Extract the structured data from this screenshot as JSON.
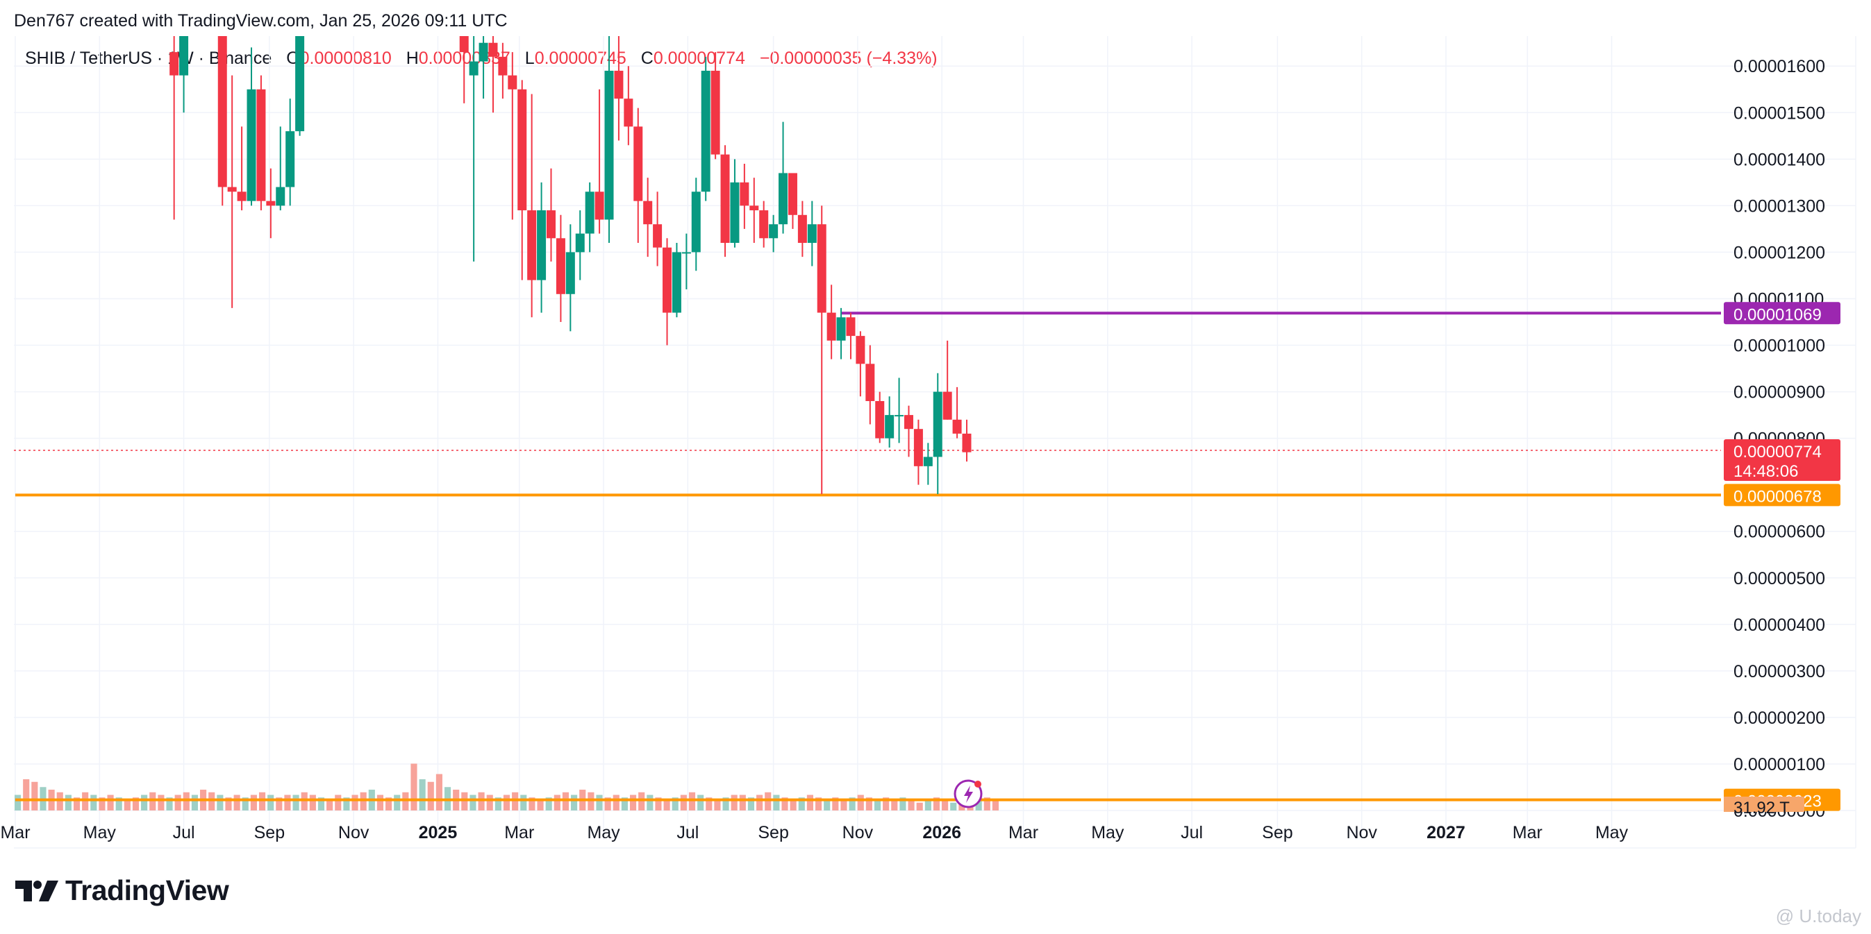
{
  "header": {
    "credit": "Den767 created with TradingView.com, Jan 25, 2026 09:11 UTC"
  },
  "legend": {
    "symbol": "SHIB / TetherUS · 1W · Binance",
    "open_label": "O",
    "open_value": "0.00000810",
    "high_label": "H",
    "high_value": "0.00000837",
    "low_label": "L",
    "low_value": "0.00000745",
    "close_label": "C",
    "close_value": "0.00000774",
    "change": "−0.00000035 (−4.33%)"
  },
  "brand": {
    "logo_text": "TradingView",
    "watermark": "@ U.today"
  },
  "colors": {
    "up": "#089981",
    "down": "#f23645",
    "volume_up": "#9fd0c6",
    "volume_down": "#f7a39a",
    "resistance": "#9c27b0",
    "support": "#ff9800",
    "grid": "#f0f3fa"
  },
  "chart_data": {
    "type": "candlestick",
    "symbol": "SHIB / TetherUS",
    "interval": "1W",
    "exchange": "Binance",
    "ylim": [
      0.0,
      1.66e-05
    ],
    "y_tick_labels": [
      "0.00001600",
      "0.00001500",
      "0.00001400",
      "0.00001300",
      "0.00001200",
      "0.00001100",
      "0.00001000",
      "0.00000900",
      "0.00000800",
      "0.00000600",
      "0.00000500",
      "0.00000400",
      "0.00000300",
      "0.00000200",
      "0.00000100",
      "0.00000000"
    ],
    "y_ticks": [
      1.6e-05,
      1.5e-05,
      1.4e-05,
      1.3e-05,
      1.2e-05,
      1.1e-05,
      1e-05,
      9e-06,
      8e-06,
      6e-06,
      5e-06,
      4e-06,
      3e-06,
      2e-06,
      1e-06,
      0.0
    ],
    "x_range": [
      "2024-03-01",
      "2027-06-20"
    ],
    "x_ticks": [
      {
        "date": "2024-03-01",
        "label": "Mar",
        "bold": false
      },
      {
        "date": "2024-05-01",
        "label": "May",
        "bold": false
      },
      {
        "date": "2024-07-01",
        "label": "Jul",
        "bold": false
      },
      {
        "date": "2024-09-01",
        "label": "Sep",
        "bold": false
      },
      {
        "date": "2024-11-01",
        "label": "Nov",
        "bold": false
      },
      {
        "date": "2025-01-01",
        "label": "2025",
        "bold": true
      },
      {
        "date": "2025-03-01",
        "label": "Mar",
        "bold": false
      },
      {
        "date": "2025-05-01",
        "label": "May",
        "bold": false
      },
      {
        "date": "2025-07-01",
        "label": "Jul",
        "bold": false
      },
      {
        "date": "2025-09-01",
        "label": "Sep",
        "bold": false
      },
      {
        "date": "2025-11-01",
        "label": "Nov",
        "bold": false
      },
      {
        "date": "2026-01-01",
        "label": "2026",
        "bold": true
      },
      {
        "date": "2026-03-01",
        "label": "Mar",
        "bold": false
      },
      {
        "date": "2026-05-01",
        "label": "May",
        "bold": false
      },
      {
        "date": "2026-07-01",
        "label": "Jul",
        "bold": false
      },
      {
        "date": "2026-09-01",
        "label": "Sep",
        "bold": false
      },
      {
        "date": "2026-11-01",
        "label": "Nov",
        "bold": false
      },
      {
        "date": "2027-01-01",
        "label": "2027",
        "bold": true
      },
      {
        "date": "2027-03-01",
        "label": "Mar",
        "bold": false
      },
      {
        "date": "2027-05-01",
        "label": "May",
        "bold": false
      }
    ],
    "candles": [
      {
        "date": "2024-06-24",
        "o": 1.63e-05,
        "h": 1.68e-05,
        "l": 1.27e-05,
        "c": 1.58e-05
      },
      {
        "date": "2024-07-01",
        "o": 1.58e-05,
        "h": 1.68e-05,
        "l": 1.5e-05,
        "c": 1.68e-05
      },
      {
        "date": "2024-07-29",
        "o": 1.68e-05,
        "h": 1.68e-05,
        "l": 1.3e-05,
        "c": 1.34e-05
      },
      {
        "date": "2024-08-05",
        "o": 1.34e-05,
        "h": 1.58e-05,
        "l": 1.08e-05,
        "c": 1.33e-05
      },
      {
        "date": "2024-08-12",
        "o": 1.33e-05,
        "h": 1.47e-05,
        "l": 1.29e-05,
        "c": 1.31e-05
      },
      {
        "date": "2024-08-19",
        "o": 1.31e-05,
        "h": 1.64e-05,
        "l": 1.3e-05,
        "c": 1.55e-05
      },
      {
        "date": "2024-08-26",
        "o": 1.55e-05,
        "h": 1.58e-05,
        "l": 1.29e-05,
        "c": 1.31e-05
      },
      {
        "date": "2024-09-02",
        "o": 1.31e-05,
        "h": 1.38e-05,
        "l": 1.23e-05,
        "c": 1.3e-05
      },
      {
        "date": "2024-09-09",
        "o": 1.3e-05,
        "h": 1.47e-05,
        "l": 1.29e-05,
        "c": 1.34e-05
      },
      {
        "date": "2024-09-16",
        "o": 1.34e-05,
        "h": 1.53e-05,
        "l": 1.3e-05,
        "c": 1.46e-05
      },
      {
        "date": "2024-09-23",
        "o": 1.46e-05,
        "h": 1.68e-05,
        "l": 1.45e-05,
        "c": 1.68e-05
      },
      {
        "date": "2025-01-20",
        "o": 1.68e-05,
        "h": 1.68e-05,
        "l": 1.52e-05,
        "c": 1.63e-05
      },
      {
        "date": "2025-01-27",
        "o": 1.58e-05,
        "h": 1.68e-05,
        "l": 1.18e-05,
        "c": 1.61e-05
      },
      {
        "date": "2025-02-03",
        "o": 1.61e-05,
        "h": 1.68e-05,
        "l": 1.53e-05,
        "c": 1.65e-05
      },
      {
        "date": "2025-02-10",
        "o": 1.65e-05,
        "h": 1.68e-05,
        "l": 1.5e-05,
        "c": 1.62e-05
      },
      {
        "date": "2025-02-17",
        "o": 1.62e-05,
        "h": 1.65e-05,
        "l": 1.53e-05,
        "c": 1.58e-05
      },
      {
        "date": "2025-02-24",
        "o": 1.58e-05,
        "h": 1.63e-05,
        "l": 1.27e-05,
        "c": 1.55e-05
      },
      {
        "date": "2025-03-03",
        "o": 1.55e-05,
        "h": 1.57e-05,
        "l": 1.14e-05,
        "c": 1.29e-05
      },
      {
        "date": "2025-03-10",
        "o": 1.29e-05,
        "h": 1.54e-05,
        "l": 1.06e-05,
        "c": 1.14e-05
      },
      {
        "date": "2025-03-17",
        "o": 1.14e-05,
        "h": 1.35e-05,
        "l": 1.07e-05,
        "c": 1.29e-05
      },
      {
        "date": "2025-03-24",
        "o": 1.29e-05,
        "h": 1.38e-05,
        "l": 1.18e-05,
        "c": 1.23e-05
      },
      {
        "date": "2025-03-31",
        "o": 1.23e-05,
        "h": 1.28e-05,
        "l": 1.05e-05,
        "c": 1.11e-05
      },
      {
        "date": "2025-04-07",
        "o": 1.11e-05,
        "h": 1.26e-05,
        "l": 1.03e-05,
        "c": 1.2e-05
      },
      {
        "date": "2025-04-14",
        "o": 1.2e-05,
        "h": 1.29e-05,
        "l": 1.14e-05,
        "c": 1.24e-05
      },
      {
        "date": "2025-04-21",
        "o": 1.24e-05,
        "h": 1.35e-05,
        "l": 1.2e-05,
        "c": 1.33e-05
      },
      {
        "date": "2025-04-28",
        "o": 1.33e-05,
        "h": 1.55e-05,
        "l": 1.24e-05,
        "c": 1.27e-05
      },
      {
        "date": "2025-05-05",
        "o": 1.27e-05,
        "h": 1.68e-05,
        "l": 1.22e-05,
        "c": 1.59e-05
      },
      {
        "date": "2025-05-12",
        "o": 1.59e-05,
        "h": 1.68e-05,
        "l": 1.44e-05,
        "c": 1.53e-05
      },
      {
        "date": "2025-05-19",
        "o": 1.53e-05,
        "h": 1.6e-05,
        "l": 1.43e-05,
        "c": 1.47e-05
      },
      {
        "date": "2025-05-26",
        "o": 1.47e-05,
        "h": 1.51e-05,
        "l": 1.22e-05,
        "c": 1.31e-05
      },
      {
        "date": "2025-06-02",
        "o": 1.31e-05,
        "h": 1.36e-05,
        "l": 1.19e-05,
        "c": 1.26e-05
      },
      {
        "date": "2025-06-09",
        "o": 1.26e-05,
        "h": 1.33e-05,
        "l": 1.17e-05,
        "c": 1.21e-05
      },
      {
        "date": "2025-06-16",
        "o": 1.21e-05,
        "h": 1.23e-05,
        "l": 1e-05,
        "c": 1.07e-05
      },
      {
        "date": "2025-06-23",
        "o": 1.07e-05,
        "h": 1.22e-05,
        "l": 1.06e-05,
        "c": 1.2e-05
      },
      {
        "date": "2025-06-30",
        "o": 1.2e-05,
        "h": 1.24e-05,
        "l": 1.12e-05,
        "c": 1.2e-05
      },
      {
        "date": "2025-07-07",
        "o": 1.2e-05,
        "h": 1.36e-05,
        "l": 1.16e-05,
        "c": 1.33e-05
      },
      {
        "date": "2025-07-14",
        "o": 1.33e-05,
        "h": 1.62e-05,
        "l": 1.31e-05,
        "c": 1.59e-05
      },
      {
        "date": "2025-07-21",
        "o": 1.59e-05,
        "h": 1.63e-05,
        "l": 1.4e-05,
        "c": 1.41e-05
      },
      {
        "date": "2025-07-28",
        "o": 1.41e-05,
        "h": 1.43e-05,
        "l": 1.19e-05,
        "c": 1.22e-05
      },
      {
        "date": "2025-08-04",
        "o": 1.22e-05,
        "h": 1.4e-05,
        "l": 1.21e-05,
        "c": 1.35e-05
      },
      {
        "date": "2025-08-11",
        "o": 1.35e-05,
        "h": 1.39e-05,
        "l": 1.25e-05,
        "c": 1.3e-05
      },
      {
        "date": "2025-08-18",
        "o": 1.3e-05,
        "h": 1.36e-05,
        "l": 1.22e-05,
        "c": 1.29e-05
      },
      {
        "date": "2025-08-25",
        "o": 1.29e-05,
        "h": 1.31e-05,
        "l": 1.21e-05,
        "c": 1.23e-05
      },
      {
        "date": "2025-09-01",
        "o": 1.23e-05,
        "h": 1.28e-05,
        "l": 1.2e-05,
        "c": 1.26e-05
      },
      {
        "date": "2025-09-08",
        "o": 1.26e-05,
        "h": 1.48e-05,
        "l": 1.24e-05,
        "c": 1.37e-05
      },
      {
        "date": "2025-09-15",
        "o": 1.37e-05,
        "h": 1.37e-05,
        "l": 1.25e-05,
        "c": 1.28e-05
      },
      {
        "date": "2025-09-22",
        "o": 1.28e-05,
        "h": 1.31e-05,
        "l": 1.19e-05,
        "c": 1.22e-05
      },
      {
        "date": "2025-09-29",
        "o": 1.22e-05,
        "h": 1.31e-05,
        "l": 1.17e-05,
        "c": 1.26e-05
      },
      {
        "date": "2025-10-06",
        "o": 1.26e-05,
        "h": 1.3e-05,
        "l": 6.8e-06,
        "c": 1.07e-05
      },
      {
        "date": "2025-10-13",
        "o": 1.07e-05,
        "h": 1.13e-05,
        "l": 9.7e-06,
        "c": 1.01e-05
      },
      {
        "date": "2025-10-20",
        "o": 1.01e-05,
        "h": 1.08e-05,
        "l": 9.7e-06,
        "c": 1.06e-05
      },
      {
        "date": "2025-10-27",
        "o": 1.06e-05,
        "h": 1.07e-05,
        "l": 9.7e-06,
        "c": 1.02e-05
      },
      {
        "date": "2025-11-03",
        "o": 1.02e-05,
        "h": 1.03e-05,
        "l": 8.9e-06,
        "c": 9.6e-06
      },
      {
        "date": "2025-11-10",
        "o": 9.6e-06,
        "h": 1e-05,
        "l": 8.3e-06,
        "c": 8.8e-06
      },
      {
        "date": "2025-11-17",
        "o": 8.8e-06,
        "h": 9e-06,
        "l": 7.9e-06,
        "c": 8e-06
      },
      {
        "date": "2025-11-24",
        "o": 8e-06,
        "h": 8.9e-06,
        "l": 7.8e-06,
        "c": 8.5e-06
      },
      {
        "date": "2025-12-01",
        "o": 8.5e-06,
        "h": 9.3e-06,
        "l": 7.9e-06,
        "c": 8.5e-06
      },
      {
        "date": "2025-12-08",
        "o": 8.5e-06,
        "h": 8.7e-06,
        "l": 7.6e-06,
        "c": 8.2e-06
      },
      {
        "date": "2025-12-15",
        "o": 8.2e-06,
        "h": 8.4e-06,
        "l": 7e-06,
        "c": 7.4e-06
      },
      {
        "date": "2025-12-22",
        "o": 7.4e-06,
        "h": 7.9e-06,
        "l": 7e-06,
        "c": 7.6e-06
      },
      {
        "date": "2025-12-29",
        "o": 7.6e-06,
        "h": 9.4e-06,
        "l": 6.8e-06,
        "c": 9e-06
      },
      {
        "date": "2026-01-05",
        "o": 9e-06,
        "h": 1.01e-05,
        "l": 8.4e-06,
        "c": 8.4e-06
      },
      {
        "date": "2026-01-12",
        "o": 8.4e-06,
        "h": 9.1e-06,
        "l": 8e-06,
        "c": 8.1e-06
      },
      {
        "date": "2026-01-19",
        "o": 8.1e-06,
        "h": 8.4e-06,
        "l": 7.5e-06,
        "c": 7.7e-06
      }
    ],
    "volume_pattern": [
      0.3,
      0.6,
      0.55,
      0.45,
      0.4,
      0.35,
      0.3,
      0.25,
      0.35,
      0.3,
      0.25,
      0.3,
      0.25,
      0.2,
      0.25,
      0.3,
      0.35,
      0.3,
      0.25,
      0.3,
      0.35,
      0.3,
      0.4,
      0.35,
      0.3,
      0.25,
      0.3,
      0.25,
      0.3,
      0.35,
      0.3,
      0.25,
      0.3,
      0.3,
      0.35,
      0.3,
      0.25,
      0.2,
      0.3,
      0.25,
      0.3,
      0.35,
      0.4,
      0.3,
      0.25,
      0.3,
      0.35,
      0.9,
      0.6,
      0.55,
      0.7,
      0.45,
      0.4,
      0.35,
      0.3,
      0.35,
      0.3,
      0.25,
      0.3,
      0.35,
      0.3,
      0.25,
      0.2,
      0.25,
      0.3,
      0.35,
      0.3,
      0.4,
      0.35,
      0.3,
      0.25,
      0.3,
      0.25,
      0.3,
      0.35,
      0.3,
      0.25,
      0.2,
      0.25,
      0.3,
      0.35,
      0.3,
      0.25,
      0.2,
      0.25,
      0.3,
      0.3,
      0.25,
      0.3,
      0.35,
      0.3,
      0.25,
      0.2,
      0.25,
      0.3,
      0.25,
      0.2,
      0.25,
      0.2,
      0.25,
      0.3,
      0.25,
      0.2,
      0.25,
      0.2,
      0.25,
      0.2,
      0.15,
      0.2,
      0.25,
      0.2,
      0.15,
      0.2,
      0.25,
      0.3,
      0.25,
      0.2
    ],
    "levels": [
      {
        "name": "resistance",
        "value": 1.069e-05,
        "label": "0.00001069",
        "start": "2025-10-20",
        "color": "#9c27b0"
      },
      {
        "name": "support",
        "value": 6.78e-06,
        "label": "0.00000678",
        "start": "2024-03-01",
        "color": "#ff9800"
      },
      {
        "name": "volume-level",
        "value": 2.3e-07,
        "label": "0.00000023",
        "start": "2024-03-01",
        "color": "#ff9800"
      }
    ],
    "last_price": {
      "value": 7.74e-06,
      "label": "0.00000774",
      "countdown": "14:48:06"
    },
    "volume_axis_label": "31.92 T"
  }
}
